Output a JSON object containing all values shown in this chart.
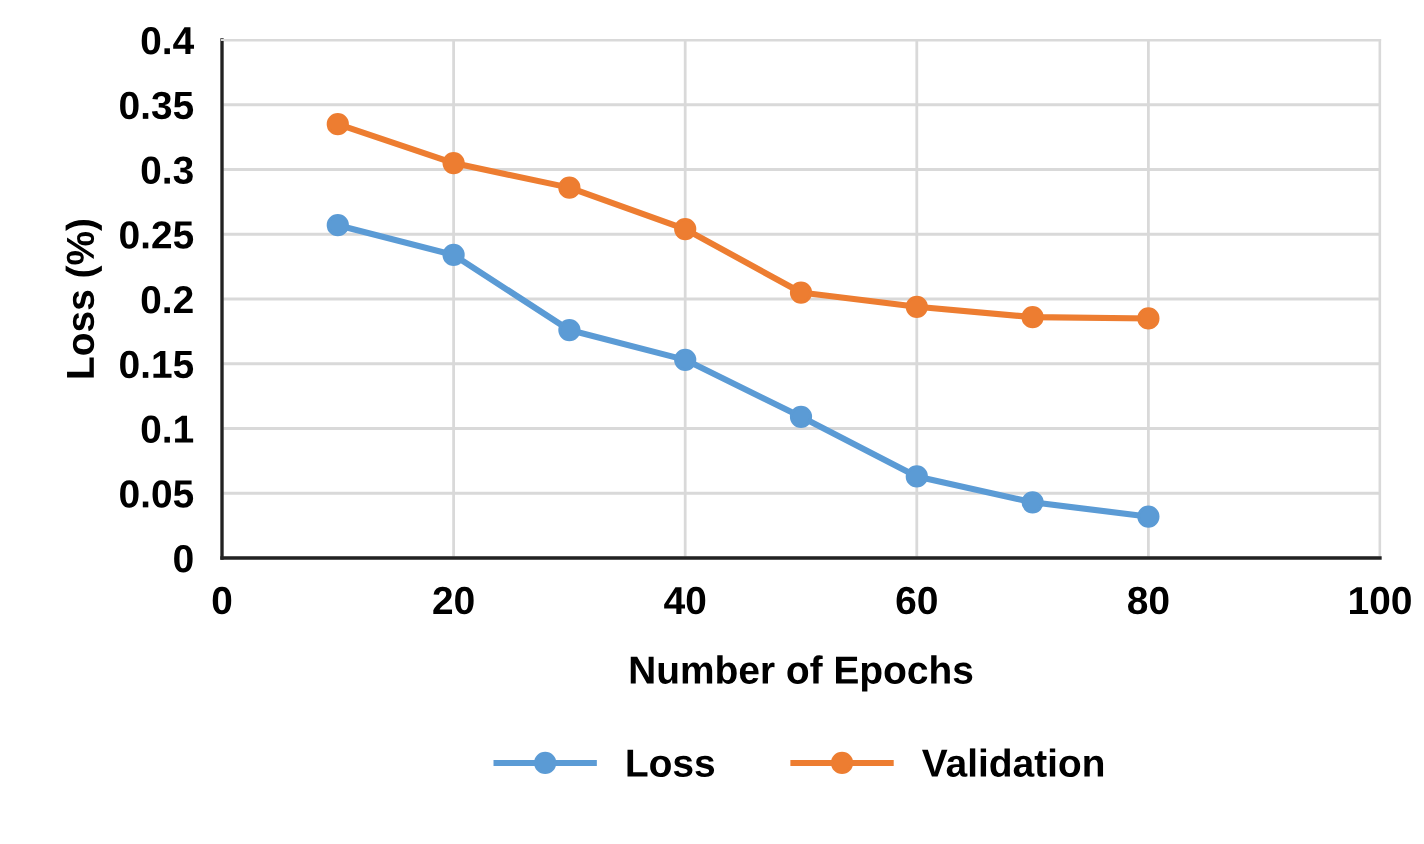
{
  "chart_data": {
    "type": "line",
    "xlabel": "Number of Epochs",
    "ylabel": "Loss (%)",
    "x": [
      10,
      20,
      30,
      40,
      50,
      60,
      70,
      80
    ],
    "series": [
      {
        "name": "Loss",
        "color": "#5b9bd5",
        "values": [
          0.257,
          0.234,
          0.176,
          0.153,
          0.109,
          0.063,
          0.043,
          0.032
        ]
      },
      {
        "name": "Validation",
        "color": "#ed7d31",
        "values": [
          0.335,
          0.305,
          0.286,
          0.254,
          0.205,
          0.194,
          0.186,
          0.185
        ]
      }
    ],
    "xlim": [
      0,
      100
    ],
    "xticks": [
      0,
      20,
      40,
      60,
      80,
      100
    ],
    "ylim": [
      0,
      0.4
    ],
    "yticks": [
      0,
      0.05,
      0.1,
      0.15,
      0.2,
      0.25,
      0.3,
      0.35,
      0.4
    ],
    "grid": true,
    "legend": "bottom",
    "marker": "circle",
    "line_style": "solid"
  }
}
